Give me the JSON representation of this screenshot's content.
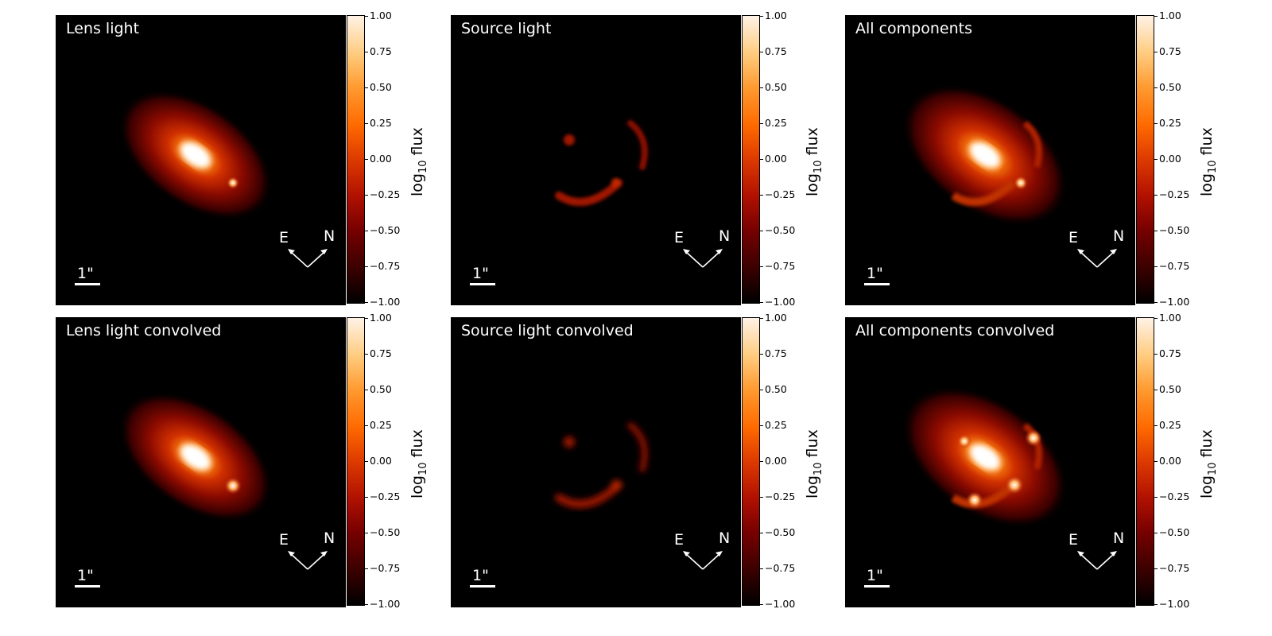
{
  "panels": [
    {
      "title": "Lens light",
      "scale_label": "1\"",
      "east": "E",
      "north": "N"
    },
    {
      "title": "Source light",
      "scale_label": "1\"",
      "east": "E",
      "north": "N"
    },
    {
      "title": "All components",
      "scale_label": "1\"",
      "east": "E",
      "north": "N"
    },
    {
      "title": "Lens light convolved",
      "scale_label": "1\"",
      "east": "E",
      "north": "N"
    },
    {
      "title": "Source light convolved",
      "scale_label": "1\"",
      "east": "E",
      "north": "N"
    },
    {
      "title": "All components convolved",
      "scale_label": "1\"",
      "east": "E",
      "north": "N"
    }
  ],
  "colorbar": {
    "label_main": "log",
    "label_sub": "10",
    "label_tail": " flux",
    "ticks": [
      "1.00",
      "0.75",
      "0.50",
      "0.25",
      "0.00",
      "−0.25",
      "−0.50",
      "−0.75",
      "−1.00"
    ]
  },
  "colors": {
    "background": "#000000",
    "text": "#ffffff",
    "cmap": "afmhot-like"
  }
}
